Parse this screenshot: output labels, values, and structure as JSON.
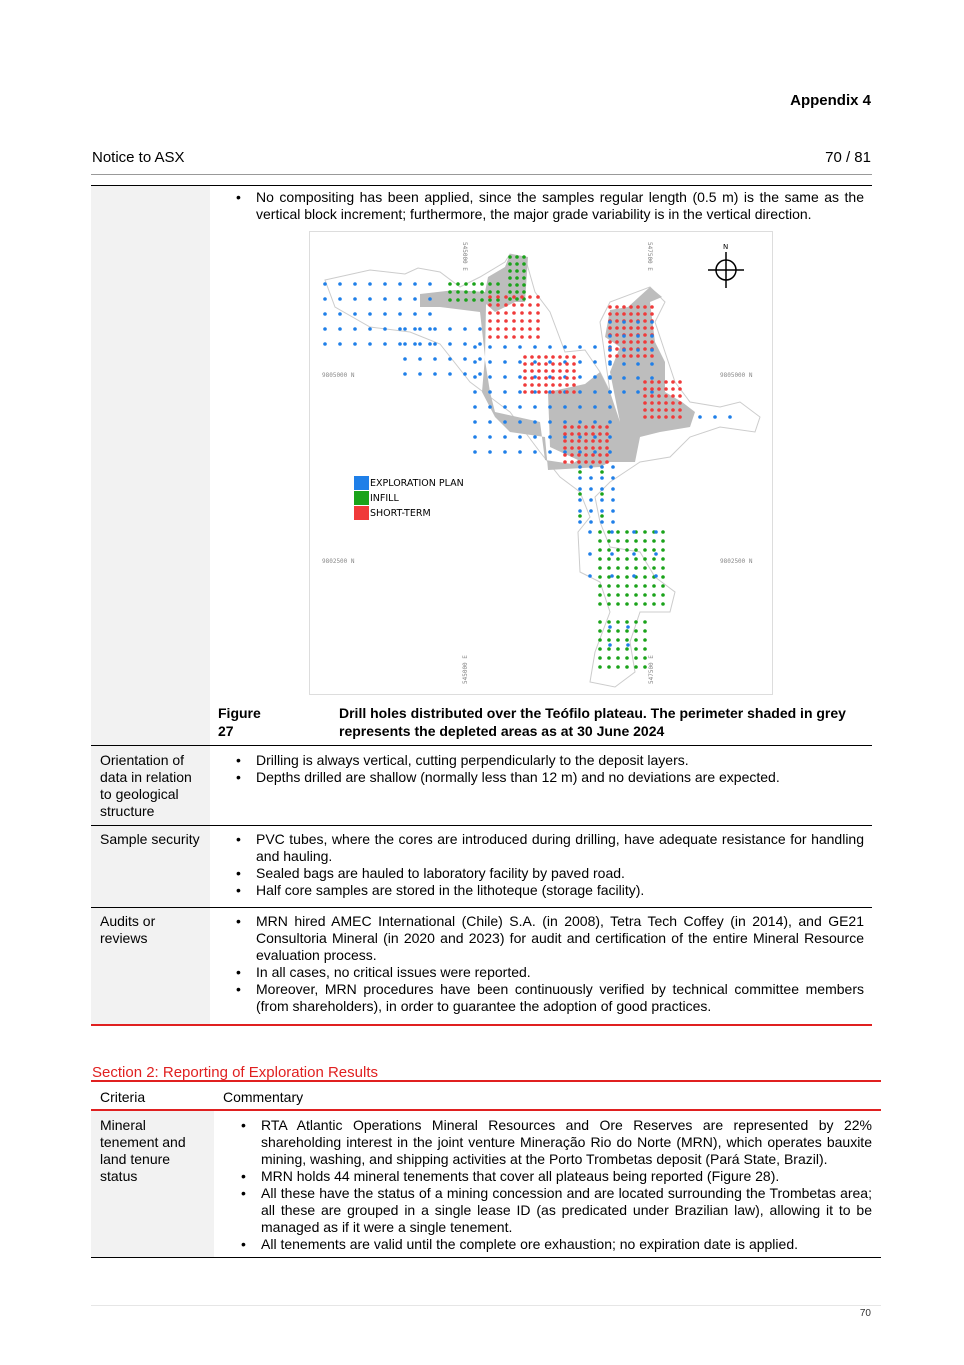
{
  "header": {
    "appendix": "Appendix 4",
    "doc_title": "Notice to ASX",
    "page_indicator": "70 / 81"
  },
  "section1": {
    "row_compositing": {
      "bullets": [
        "No compositing has been applied, since the samples regular length (0.5 m) is the same as the vertical block increment; furthermore, the major grade variability is in the vertical direction."
      ]
    },
    "figure": {
      "number": "Figure 27",
      "caption": "Drill holes distributed over the Teófilo plateau. The perimeter shaded in grey represents the depleted areas as at 30 June 2024",
      "map_labels": {
        "east_left": "545000 E",
        "east_right": "547500 E",
        "north_top": "9805000 N",
        "north_bottom": "9802500 N",
        "north_arrow": "N"
      },
      "legend": [
        {
          "label": "EXPLORATION PLAN",
          "color": "#1f7fe8"
        },
        {
          "label": "INFILL",
          "color": "#1aa31a"
        },
        {
          "label": "SHORT-TERM",
          "color": "#f03a3a"
        }
      ],
      "depleted_color": "#bdbdbd"
    },
    "rows": [
      {
        "criteria": "Orientation of data in relation to geological structure",
        "bullets": [
          "Drilling is always vertical, cutting perpendicularly to the deposit layers.",
          "Depths drilled are shallow (normally less than 12 m) and no deviations are expected."
        ]
      },
      {
        "criteria": "Sample security",
        "bullets": [
          "PVC tubes, where the cores are introduced during drilling, have adequate resistance for handling and hauling.",
          "Sealed bags are hauled to laboratory facility by paved road.",
          "Half core samples are stored in the lithoteque (storage facility)."
        ]
      },
      {
        "criteria": "Audits or reviews",
        "bullets": [
          "MRN hired AMEC International (Chile) S.A. (in 2008), Tetra Tech Coffey (in 2014), and GE21 Consultoria Mineral (in 2020 and 2023) for audit and certification of the entire Mineral Resource evaluation process.",
          "In all cases, no critical issues were reported.",
          "Moreover, MRN procedures have been continuously verified by technical committee members (from shareholders), in order to guarantee the adoption of good practices."
        ]
      }
    ]
  },
  "section2": {
    "title": "Section 2:  Reporting of Exploration Results",
    "columns": [
      "Criteria",
      "Commentary"
    ],
    "rows": [
      {
        "criteria": "Mineral tenement and land tenure status",
        "bullets": [
          "RTA Atlantic Operations Mineral Resources and Ore Reserves are represented by 22% shareholding interest in the joint venture Mineração Rio do Norte (MRN), which operates bauxite mining, washing, and shipping activities at the Porto Trombetas deposit (Pará State, Brazil).",
          "MRN holds 44 mineral tenements that cover all plateaus being reported (Figure 28).",
          "All these have the status of a mining concession and are located surrounding the Trombetas area; all these are grouped in a single lease ID (as predicated under Brazilian law), allowing it to be managed as if it were a single tenement.",
          "All tenements are valid until the complete ore exhaustion; no expiration date is applied."
        ]
      }
    ]
  },
  "footer": {
    "page_number": "70"
  }
}
